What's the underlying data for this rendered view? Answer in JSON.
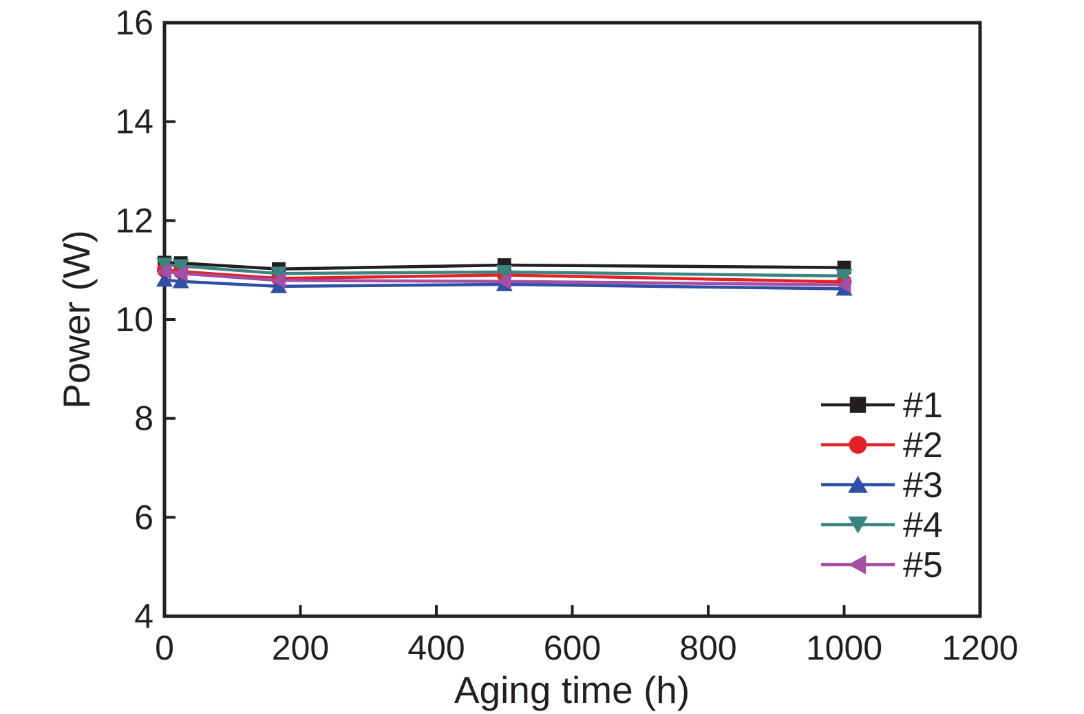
{
  "figure": {
    "background": "#ffffff",
    "axis_color": "#231f20"
  },
  "chart_data": {
    "type": "line",
    "title": "",
    "xlabel": "Aging time (h)",
    "ylabel": "Power (W)",
    "xlim": [
      0,
      1200
    ],
    "ylim": [
      4,
      16
    ],
    "x_ticks": [
      0,
      200,
      400,
      600,
      800,
      1000,
      1200
    ],
    "y_ticks": [
      4,
      6,
      8,
      10,
      12,
      14,
      16
    ],
    "grid": false,
    "legend_position": "inside lower right",
    "x": [
      0,
      24,
      168,
      500,
      1000
    ],
    "series": [
      {
        "name": "#1",
        "color": "#231f20",
        "marker": "square",
        "values": [
          11.15,
          11.14,
          11.02,
          11.1,
          11.05
        ]
      },
      {
        "name": "#2",
        "color": "#e32227",
        "marker": "circle",
        "values": [
          11.0,
          10.97,
          10.83,
          10.9,
          10.76
        ]
      },
      {
        "name": "#3",
        "color": "#2e4fa3",
        "marker": "triangle-up",
        "values": [
          10.8,
          10.77,
          10.67,
          10.71,
          10.62
        ]
      },
      {
        "name": "#4",
        "color": "#3b8581",
        "marker": "triangle-down",
        "values": [
          11.11,
          11.08,
          10.93,
          10.96,
          10.88
        ]
      },
      {
        "name": "#5",
        "color": "#a34fa5",
        "marker": "triangle-left",
        "values": [
          10.97,
          10.93,
          10.79,
          10.77,
          10.7
        ]
      }
    ]
  }
}
